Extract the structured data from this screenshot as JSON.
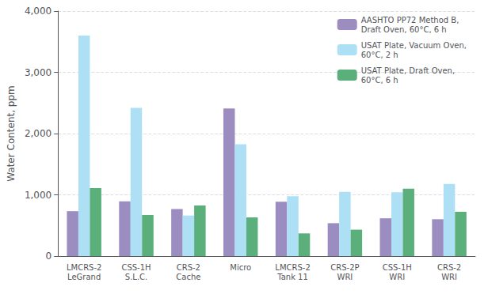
{
  "chart_data": {
    "type": "bar",
    "categories": [
      "LMCRS-2\nLeGrand",
      "CSS-1H\nS.L.C.",
      "CRS-2\nCache",
      "Micro",
      "LMCRS-2\nTank 11",
      "CRS-2P\nWRI",
      "CSS-1H\nWRI",
      "CRS-2\nWRI"
    ],
    "series": [
      {
        "name": "AASHTO PP72 Method B,\nDraft Oven, 60°C, 6 h",
        "color": "#9B8DC0",
        "values": [
          733,
          894,
          768,
          2410,
          886,
          537,
          617,
          602
        ]
      },
      {
        "name": "USAT Plate, Vacuum Oven,\n60°C, 2 h",
        "color": "#ADE0F5",
        "values": [
          3600,
          2420,
          662,
          1826,
          976,
          1047,
          1041,
          1177
        ]
      },
      {
        "name": "USAT Plate, Draft Oven,\n60°C, 6 h",
        "color": "#5BAF7A",
        "values": [
          1110,
          671,
          826,
          631,
          370,
          431,
          1100,
          723
        ]
      }
    ],
    "ylabel": "Water Content, ppm",
    "ylim": [
      0,
      4000
    ],
    "yticks": [
      0,
      {
        "value": 1000,
        "label": "1,000"
      },
      {
        "value": 2000,
        "label": "2,000"
      },
      {
        "value": 3000,
        "label": "3,000"
      },
      {
        "value": 4000,
        "label": "4,000"
      }
    ],
    "grid": true,
    "legend": "upper right"
  }
}
